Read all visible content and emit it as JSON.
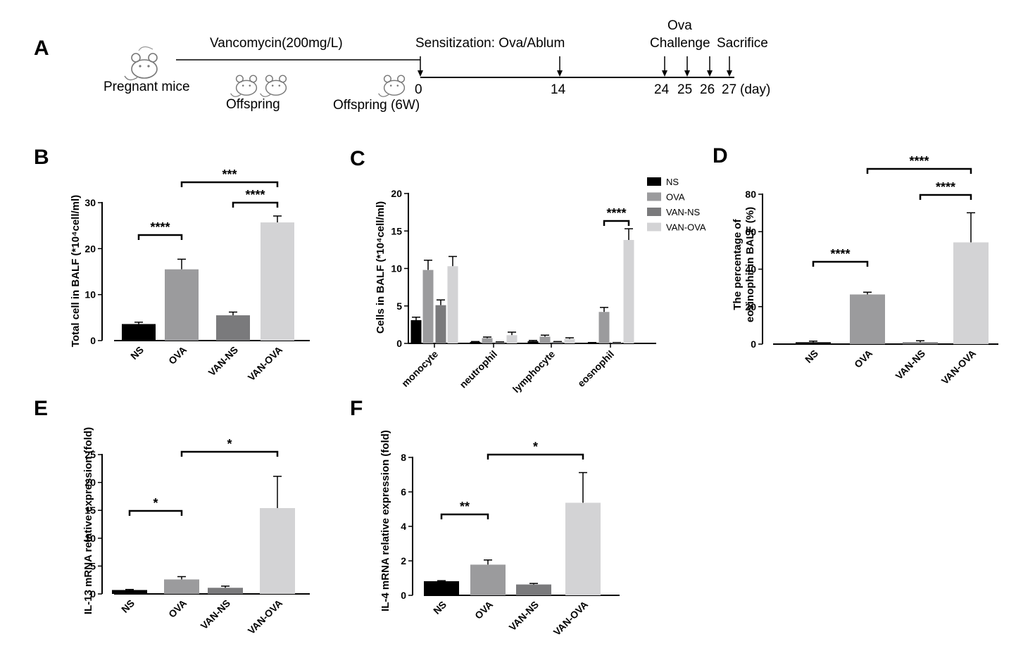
{
  "colors": {
    "NS": "#000000",
    "OVA": "#9b9b9d",
    "VAN-NS": "#7a7a7c",
    "VAN-OVA": "#d3d3d5"
  },
  "timeline": {
    "panel_label": "A",
    "icons": [
      "mouse-icon",
      "mouse-icon",
      "mouse-icon",
      "mouse-icon"
    ],
    "pregnant_label": "Pregnant mice",
    "offspring_label": "Offspring",
    "offspring6w_label": "Offspring (6W)",
    "vancomycin_label": "Vancomycin(200mg/L)",
    "sensitization_label": "Sensitization: Ova/Ablum",
    "ova_label": "Ova",
    "challenge_label": "Challenge",
    "sacrifice_label": "Sacrifice",
    "day_unit": "(day)",
    "days": [
      "0",
      "14",
      "24",
      "25",
      "26",
      "27"
    ]
  },
  "chart_data": [
    {
      "id": "B",
      "panel_label": "B",
      "type": "bar",
      "ylabel": "Total cell in BALF (*10⁴cell/ml)",
      "ylim": [
        0,
        30
      ],
      "yticks": [
        0,
        10,
        20,
        30
      ],
      "categories": [
        "NS",
        "OVA",
        "VAN-NS",
        "VAN-OVA"
      ],
      "values": [
        3.6,
        15.5,
        5.5,
        25.7
      ],
      "errors": [
        0.4,
        2.2,
        0.7,
        1.4
      ],
      "significance": [
        {
          "from": 0,
          "to": 1,
          "label": "****"
        },
        {
          "from": 2,
          "to": 3,
          "label": "****"
        },
        {
          "from": 1,
          "to": 3,
          "label": "***"
        }
      ]
    },
    {
      "id": "C",
      "panel_label": "C",
      "type": "bar",
      "ylabel": "Cells in BALF (*10⁴cell/ml)",
      "ylim": [
        0,
        20
      ],
      "yticks": [
        0,
        5,
        10,
        15,
        20
      ],
      "categories": [
        "monocyte",
        "neutrophil",
        "lymphocyte",
        "eosnophil"
      ],
      "series": [
        {
          "name": "NS",
          "values": [
            3.1,
            0.2,
            0.3,
            0.1
          ],
          "errors": [
            0.4,
            0.05,
            0.1,
            0.02
          ]
        },
        {
          "name": "OVA",
          "values": [
            9.8,
            0.7,
            0.9,
            4.2
          ],
          "errors": [
            1.3,
            0.15,
            0.2,
            0.6
          ]
        },
        {
          "name": "VAN-NS",
          "values": [
            5.1,
            0.15,
            0.2,
            0.1
          ],
          "errors": [
            0.7,
            0.05,
            0.05,
            0.02
          ]
        },
        {
          "name": "VAN-OVA",
          "values": [
            10.3,
            1.1,
            0.6,
            13.8
          ],
          "errors": [
            1.3,
            0.4,
            0.15,
            1.5
          ]
        }
      ],
      "legend_position": "top-right",
      "significance": [
        {
          "category": 3,
          "from_series": 1,
          "to_series": 3,
          "label": "****"
        }
      ]
    },
    {
      "id": "D",
      "panel_label": "D",
      "type": "bar",
      "ylabel_lines": [
        "The percentage of",
        "eosinophil in BALF (%)"
      ],
      "ylim": [
        0,
        80
      ],
      "yticks": [
        0,
        20,
        40,
        60,
        80
      ],
      "categories": [
        "NS",
        "OVA",
        "VAN-NS",
        "VAN-OVA"
      ],
      "values": [
        1.0,
        26.5,
        1.0,
        54.3
      ],
      "errors": [
        0.6,
        1.2,
        0.8,
        15.8
      ],
      "significance": [
        {
          "from": 0,
          "to": 1,
          "label": "****"
        },
        {
          "from": 2,
          "to": 3,
          "label": "****"
        },
        {
          "from": 1,
          "to": 3,
          "label": "****"
        }
      ]
    },
    {
      "id": "E",
      "panel_label": "E",
      "type": "bar",
      "ylabel": "IL-13 mRNA relative expression (fold)",
      "ylim": [
        0,
        25
      ],
      "yticks": [
        0,
        5,
        10,
        15,
        20,
        25
      ],
      "categories": [
        "NS",
        "OVA",
        "VAN-NS",
        "VAN-OVA"
      ],
      "values": [
        0.7,
        2.6,
        1.1,
        15.4
      ],
      "errors": [
        0.1,
        0.5,
        0.3,
        5.7
      ],
      "significance": [
        {
          "from": 0,
          "to": 1,
          "label": "*"
        },
        {
          "from": 1,
          "to": 3,
          "label": "*"
        }
      ]
    },
    {
      "id": "F",
      "panel_label": "F",
      "type": "bar",
      "ylabel": "IL-4 mRNA relative expression (fold)",
      "ylim": [
        0,
        8
      ],
      "yticks": [
        0,
        2,
        4,
        6,
        8
      ],
      "categories": [
        "NS",
        "OVA",
        "VAN-NS",
        "VAN-OVA"
      ],
      "values": [
        0.82,
        1.78,
        0.63,
        5.37
      ],
      "errors": [
        0.03,
        0.27,
        0.06,
        1.75
      ],
      "significance": [
        {
          "from": 0,
          "to": 1,
          "label": "**"
        },
        {
          "from": 1,
          "to": 3,
          "label": "*"
        }
      ]
    }
  ]
}
